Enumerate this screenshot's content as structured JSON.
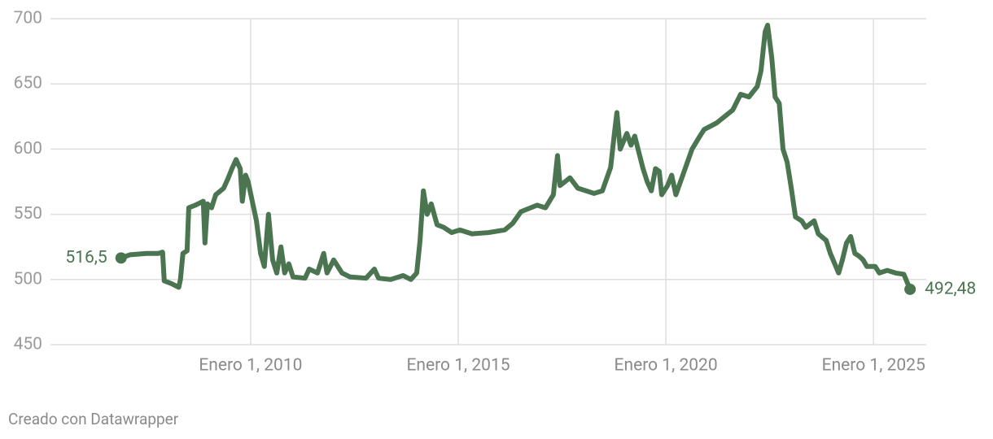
{
  "chart_data": {
    "type": "line",
    "x": [
      2006.88,
      2007.1,
      2007.49,
      2007.78,
      2007.88,
      2007.92,
      2008.08,
      2008.27,
      2008.31,
      2008.37,
      2008.47,
      2008.51,
      2008.67,
      2008.86,
      2008.9,
      2008.96,
      2009.06,
      2009.16,
      2009.35,
      2009.45,
      2009.55,
      2009.65,
      2009.75,
      2009.8,
      2009.88,
      2009.94,
      2010.04,
      2010.14,
      2010.24,
      2010.33,
      2010.43,
      2010.53,
      2010.63,
      2010.73,
      2010.82,
      2010.92,
      2011.02,
      2011.31,
      2011.41,
      2011.61,
      2011.76,
      2011.84,
      2012.0,
      2012.2,
      2012.39,
      2012.78,
      2012.98,
      2013.08,
      2013.37,
      2013.67,
      2013.86,
      2014.0,
      2014.08,
      2014.16,
      2014.25,
      2014.35,
      2014.49,
      2014.65,
      2014.84,
      2015.04,
      2015.33,
      2015.73,
      2016.12,
      2016.31,
      2016.51,
      2016.9,
      2017.1,
      2017.29,
      2017.39,
      2017.45,
      2017.69,
      2017.88,
      2018.08,
      2018.27,
      2018.47,
      2018.67,
      2018.76,
      2018.82,
      2018.9,
      2019.06,
      2019.16,
      2019.25,
      2019.45,
      2019.55,
      2019.65,
      2019.75,
      2019.84,
      2019.9,
      2020.04,
      2020.14,
      2020.24,
      2020.43,
      2020.63,
      2020.82,
      2020.92,
      2021.22,
      2021.61,
      2021.8,
      2022.0,
      2022.2,
      2022.29,
      2022.39,
      2022.45,
      2022.55,
      2022.63,
      2022.73,
      2022.82,
      2022.92,
      2023.02,
      2023.12,
      2023.27,
      2023.37,
      2023.57,
      2023.67,
      2023.86,
      2023.96,
      2024.16,
      2024.25,
      2024.35,
      2024.45,
      2024.55,
      2024.65,
      2024.75,
      2024.84,
      2025.04,
      2025.14,
      2025.33,
      2025.53,
      2025.73,
      2025.88
    ],
    "series": [
      {
        "color": "#4b7551",
        "values": [
          516.5,
          519,
          520,
          520,
          521,
          499,
          497,
          494,
          500,
          520,
          522,
          555,
          557,
          560,
          528,
          558,
          555,
          565,
          570,
          577,
          585,
          592,
          585,
          560,
          580,
          575,
          560,
          545,
          520,
          510,
          550,
          515,
          505,
          525,
          505,
          512,
          502,
          501,
          508,
          505,
          520,
          505,
          515,
          505,
          502,
          501,
          508,
          501,
          500,
          503,
          500,
          505,
          530,
          568,
          550,
          558,
          542,
          540,
          536,
          538,
          535,
          536,
          538,
          543,
          552,
          557,
          555,
          565,
          595,
          572,
          578,
          570,
          568,
          566,
          568,
          586,
          612,
          628,
          600,
          612,
          603,
          610,
          585,
          575,
          568,
          585,
          583,
          565,
          572,
          580,
          565,
          582,
          600,
          610,
          615,
          620,
          630,
          642,
          640,
          648,
          660,
          690,
          695,
          670,
          640,
          635,
          600,
          590,
          570,
          548,
          545,
          540,
          545,
          535,
          530,
          520,
          505,
          515,
          528,
          533,
          520,
          518,
          515,
          510,
          510,
          505,
          507,
          505,
          504,
          492.48
        ],
        "value_labels": [
          "516,5",
          null,
          null,
          null,
          null,
          null,
          null,
          null,
          null,
          null,
          null,
          null,
          null,
          null,
          null,
          null,
          null,
          null,
          null,
          null,
          null,
          null,
          null,
          null,
          null,
          null,
          null,
          null,
          null,
          null,
          null,
          null,
          null,
          null,
          null,
          null,
          null,
          null,
          null,
          null,
          null,
          null,
          null,
          null,
          null,
          null,
          null,
          null,
          null,
          null,
          null,
          null,
          null,
          null,
          null,
          null,
          null,
          null,
          null,
          null,
          null,
          null,
          null,
          null,
          null,
          null,
          null,
          null,
          null,
          null,
          null,
          null,
          null,
          null,
          null,
          null,
          null,
          null,
          null,
          null,
          null,
          null,
          null,
          null,
          null,
          null,
          null,
          null,
          null,
          null,
          null,
          null,
          null,
          null,
          null,
          null,
          null,
          null,
          null,
          null,
          null,
          null,
          null,
          null,
          null,
          null,
          null,
          null,
          null,
          null,
          null,
          null,
          null,
          null,
          null,
          null,
          null,
          null,
          null,
          null,
          null,
          null,
          null,
          null,
          null,
          null,
          null,
          null,
          null,
          "492,48"
        ]
      }
    ],
    "xlim": [
      2005.18,
      2026.27
    ],
    "xticks": [
      {
        "value": 2010,
        "label": "Enero 1, 2010"
      },
      {
        "value": 2015,
        "label": "Enero 1, 2015"
      },
      {
        "value": 2020,
        "label": "Enero 1, 2020"
      },
      {
        "value": 2025,
        "label": "Enero 1, 2025"
      }
    ],
    "ylim": [
      450,
      700
    ],
    "yticks": [
      450,
      500,
      550,
      600,
      650,
      700
    ],
    "grid": true,
    "footer": "Creado con Datawrapper"
  }
}
